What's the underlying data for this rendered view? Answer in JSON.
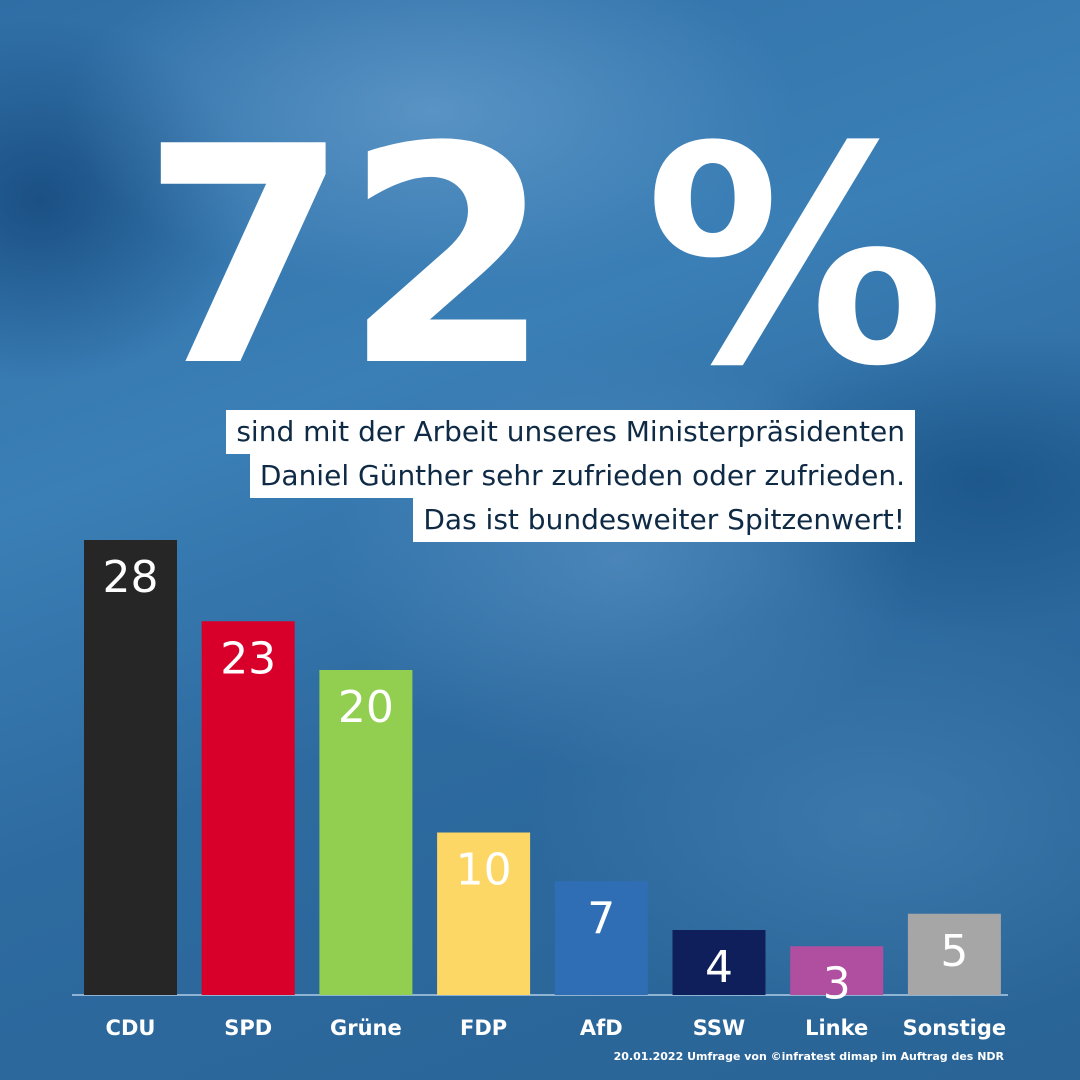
{
  "headline": "72 %",
  "subtitle_lines": [
    "sind mit der Arbeit unseres Ministerpräsidenten",
    "Daniel Günther sehr zufrieden oder zufrieden.",
    "Das ist bundesweiter Spitzenwert!"
  ],
  "footnote": "20.01.2022 Umfrage von ©infratest dimap im Auftrag des NDR",
  "chart_data": {
    "type": "bar",
    "categories": [
      "CDU",
      "SPD",
      "Grüne",
      "FDP",
      "AfD",
      "SSW",
      "Linke",
      "Sonstige"
    ],
    "values": [
      28,
      23,
      20,
      10,
      7,
      4,
      3,
      5
    ],
    "colors": [
      "#262626",
      "#d8002a",
      "#92cf50",
      "#fdd766",
      "#2f6eb5",
      "#0e1f5b",
      "#b04ea0",
      "#a6a6a6"
    ],
    "label_color": "#ffffff",
    "ylim": [
      0,
      28
    ],
    "grid": false,
    "legend": "none"
  }
}
